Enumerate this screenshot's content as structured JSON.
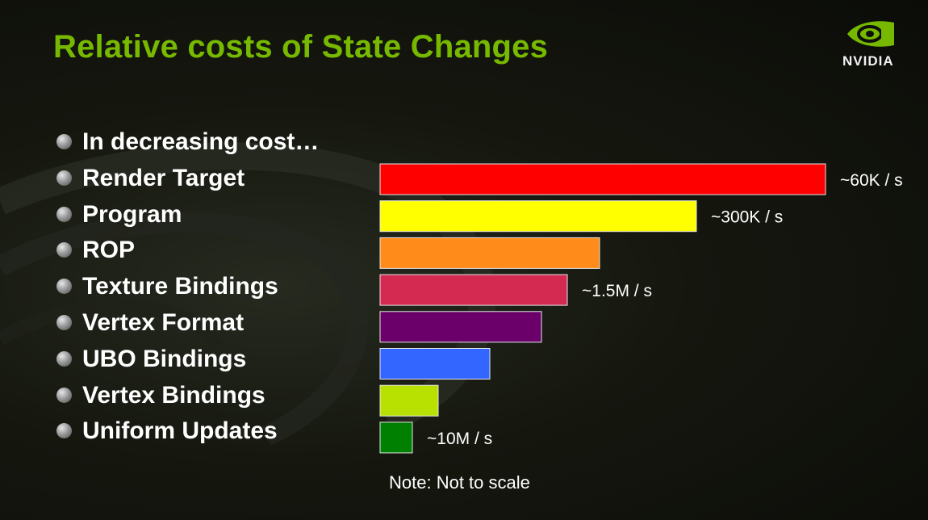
{
  "title": "Relative costs of State Changes",
  "logo": {
    "text": "NVIDIA",
    "color": "#76b900"
  },
  "bullets": [
    "In decreasing cost…",
    "Render Target",
    "Program",
    "ROP",
    "Texture Bindings",
    "Vertex Format",
    "UBO Bindings",
    "Vertex Bindings",
    "Uniform Updates"
  ],
  "note": "Note: Not to scale",
  "chart_data": {
    "type": "bar",
    "orientation": "horizontal",
    "categories": [
      "Render Target",
      "Program",
      "ROP",
      "Texture Bindings",
      "Vertex Format",
      "UBO Bindings",
      "Vertex Bindings",
      "Uniform Updates"
    ],
    "values": [
      552,
      392,
      272,
      232,
      200,
      136,
      72,
      40
    ],
    "colors": [
      "#ff0000",
      "#ffff00",
      "#ff8c1a",
      "#d42a52",
      "#6b006b",
      "#3366ff",
      "#b8e000",
      "#008000"
    ],
    "data_labels": [
      "~60K / s",
      "~300K / s",
      "",
      "~1.5M / s",
      "",
      "",
      "",
      "~10M / s"
    ],
    "note": "Note: Not to scale"
  }
}
